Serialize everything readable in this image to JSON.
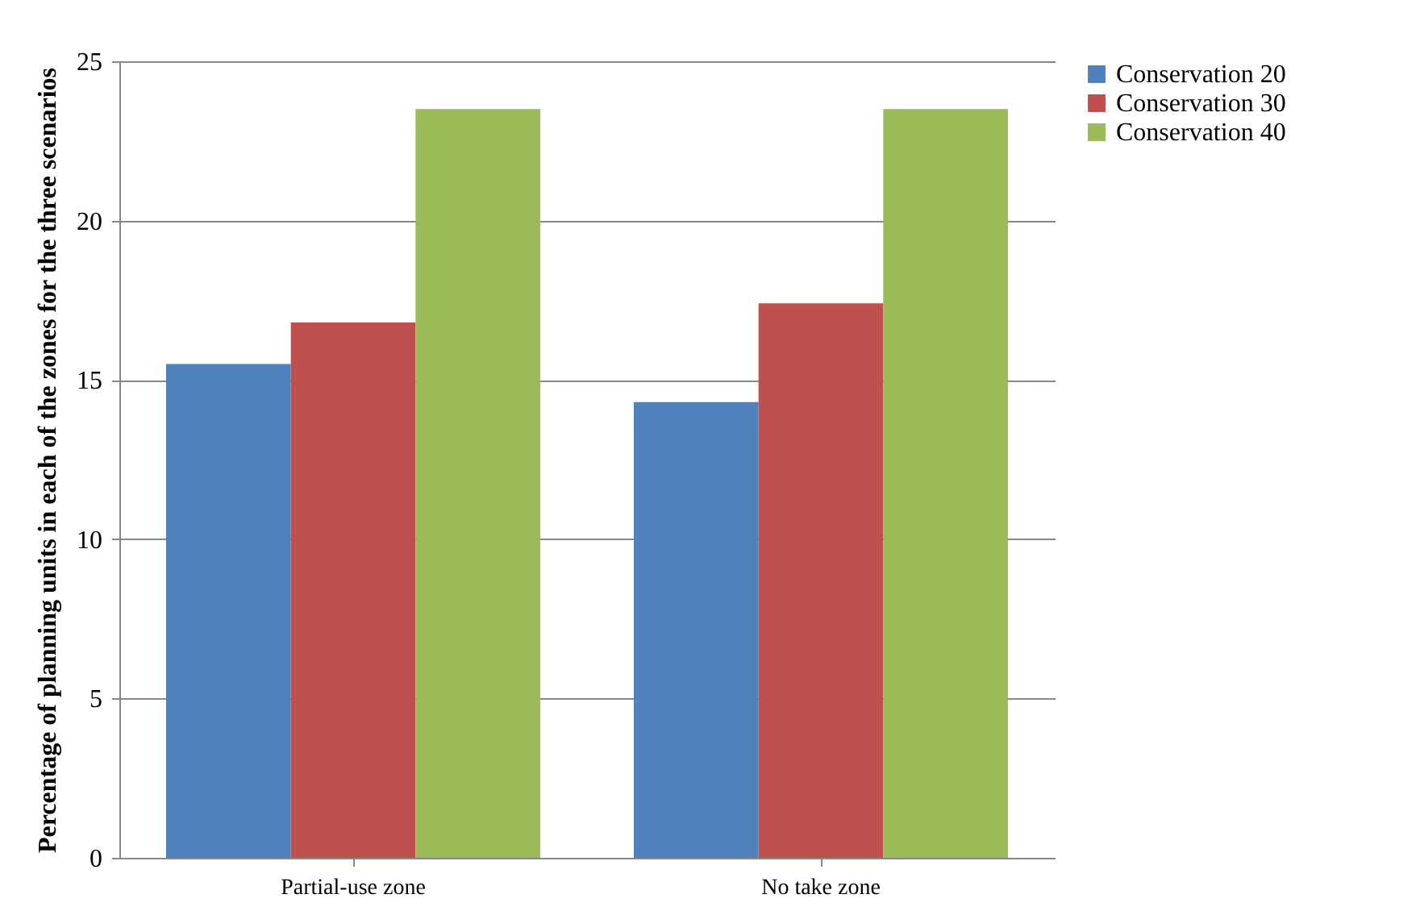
{
  "chart_data": {
    "type": "bar",
    "ylabel": "Percentage of planning units in each of the zones for the three scenarios",
    "categories": [
      "Partial-use zone",
      "No take zone"
    ],
    "series": [
      {
        "name": "Conservation 20",
        "color": "#4f81bd",
        "values": [
          15.5,
          14.3
        ]
      },
      {
        "name": "Conservation 30",
        "color": "#c0504d",
        "values": [
          16.8,
          17.4
        ]
      },
      {
        "name": "Conservation 40",
        "color": "#9bbb59",
        "values": [
          23.5,
          23.5
        ]
      }
    ],
    "ylim": [
      0,
      25
    ],
    "yticks": [
      0,
      5,
      10,
      15,
      20,
      25
    ],
    "grid": "y",
    "legend": "right"
  }
}
